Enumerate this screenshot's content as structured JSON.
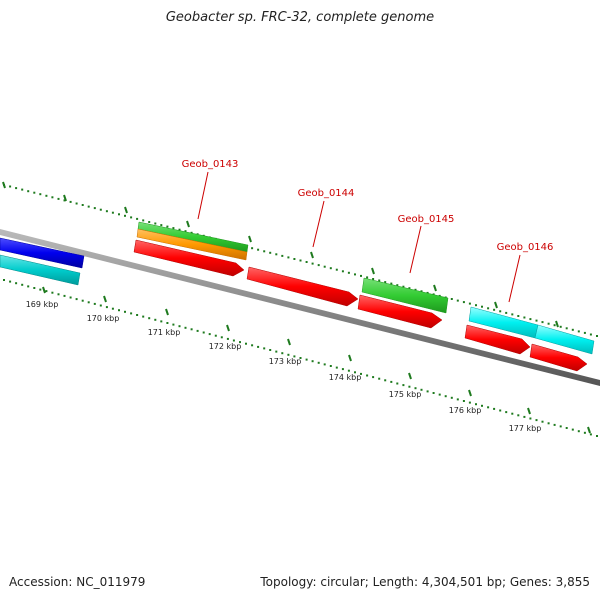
{
  "title": "Geobacter sp. FRC-32, complete genome",
  "accession": "Accession: NC_011979",
  "summary": "Topology: circular; Length: 4,304,501 bp; Genes: 3,855",
  "colors": {
    "backbone": "#888888",
    "tick": "#1e7a1e",
    "gene_label": "#cc0000",
    "kbp_label": "#222222",
    "forward_cds": "#ff0000",
    "forward_gene": "#33cc33",
    "forward_misc": "#ff9900",
    "reverse_blue": "#0000ee",
    "reverse_cyan": "#00cccc",
    "forward_cyan": "#00f0f0"
  },
  "kbp_labels": [
    "169 kbp",
    "170 kbp",
    "171 kbp",
    "172 kbp",
    "173 kbp",
    "174 kbp",
    "175 kbp",
    "176 kbp",
    "177 kbp"
  ],
  "gene_labels": [
    "Geob_0143",
    "Geob_0144",
    "Geob_0145",
    "Geob_0146"
  ]
}
